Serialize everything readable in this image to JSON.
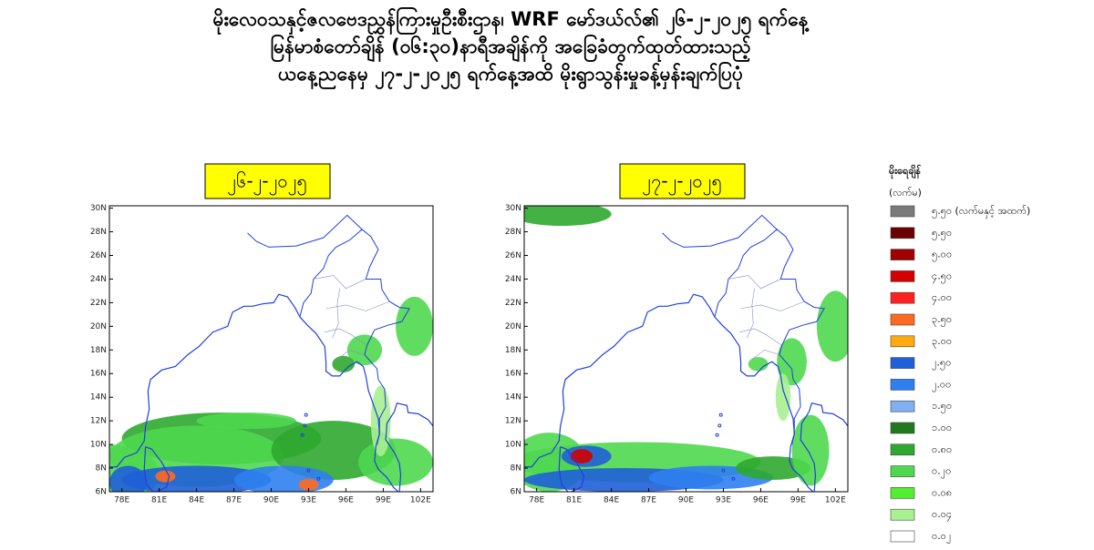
{
  "title": [
    "မိုးလေဝသနှင့်ဇလဗေဒညွှန်ကြားမှုဦးစီးဌာန၊ WRF မော်ဒယ်လ်၏ ၂၆-၂-၂၀၂၅ ရက်နေ့",
    "မြန်မာစံတော်ချိန် (၀၆:၃၀)နာရီအချိန်ကို အခြေခံတွက်ထုတ်ထားသည့်",
    "ယနေ့ညနေမှ ၂၇-၂-၂၀၂၅ ရက်နေ့အထိ မိုးရွာသွန်းမှုခန့်မှန်းချက်ပြပုံ"
  ],
  "panels": [
    {
      "date": "၂၆-၂-၂၀၂၅"
    },
    {
      "date": "၂၇-၂-၂၀၂၅"
    }
  ],
  "map_axes": {
    "lat_ticks": [
      "6N",
      "8N",
      "10N",
      "12N",
      "14N",
      "16N",
      "18N",
      "20N",
      "22N",
      "24N",
      "26N",
      "28N",
      "30N"
    ],
    "lon_ticks": [
      "78E",
      "81E",
      "84E",
      "87E",
      "90E",
      "93E",
      "96E",
      "99E",
      "102E"
    ]
  },
  "legend": {
    "title": "မိုးရေချိန်",
    "unit": "(လက်မ)",
    "items": [
      {
        "label": "၅.၅၀ (လက်မနှင့် အထက်)",
        "color": "#7a7a7a"
      },
      {
        "label": "၅.၅၀",
        "color": "#6b0000"
      },
      {
        "label": "၅.၀၀",
        "color": "#a00000"
      },
      {
        "label": "၄.၅၀",
        "color": "#d40000"
      },
      {
        "label": "၄.၀၀",
        "color": "#ff2020"
      },
      {
        "label": "၃.၅၀",
        "color": "#ff6a20"
      },
      {
        "label": "၃.၀၀",
        "color": "#ffaa10"
      },
      {
        "label": "၂.၅၀",
        "color": "#1f5fd8"
      },
      {
        "label": "၂.၀၀",
        "color": "#2f7ff0"
      },
      {
        "label": "၁.၅၀",
        "color": "#7fb0ef"
      },
      {
        "label": "၁.၀၀",
        "color": "#1f7a1f"
      },
      {
        "label": "၀.၈၀",
        "color": "#2fa82f"
      },
      {
        "label": "၀.၂၀",
        "color": "#4fd84f"
      },
      {
        "label": "၀.၀၈",
        "color": "#50ef30"
      },
      {
        "label": "၀.၀၄",
        "color": "#a8f090"
      },
      {
        "label": "၀.၀၂",
        "color": "#ffffff"
      }
    ]
  }
}
